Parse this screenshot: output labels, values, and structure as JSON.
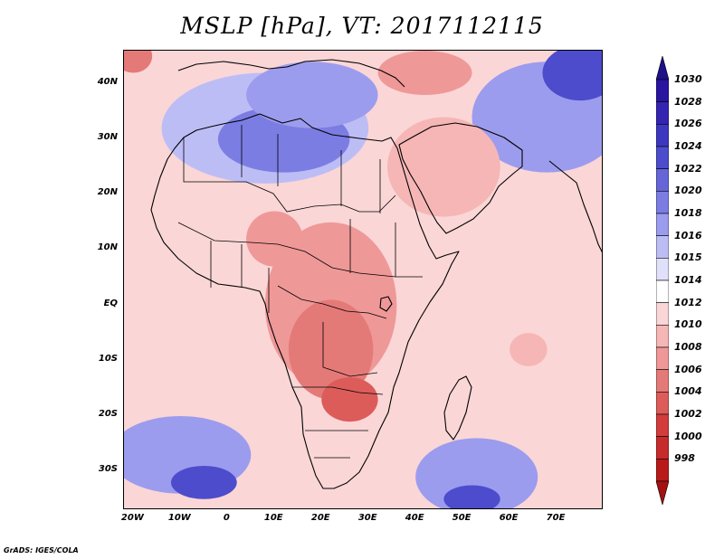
{
  "title": "MSLP [hPa], VT: 2017112115",
  "credit": "GrADS: IGES/COLA",
  "map": {
    "lon_range": [
      -22,
      80
    ],
    "lat_range": [
      -37,
      46
    ],
    "lat_ticks": [
      {
        "value": 40,
        "label": "40N"
      },
      {
        "value": 30,
        "label": "30N"
      },
      {
        "value": 20,
        "label": "20N"
      },
      {
        "value": 10,
        "label": "10N"
      },
      {
        "value": 0,
        "label": "EQ"
      },
      {
        "value": -10,
        "label": "10S"
      },
      {
        "value": -20,
        "label": "20S"
      },
      {
        "value": -30,
        "label": "30S"
      }
    ],
    "lon_ticks": [
      {
        "value": -20,
        "label": "20W"
      },
      {
        "value": -10,
        "label": "10W"
      },
      {
        "value": 0,
        "label": "0"
      },
      {
        "value": 10,
        "label": "10E"
      },
      {
        "value": 20,
        "label": "20E"
      },
      {
        "value": 30,
        "label": "30E"
      },
      {
        "value": 40,
        "label": "40E"
      },
      {
        "value": 50,
        "label": "50E"
      },
      {
        "value": 60,
        "label": "60E"
      },
      {
        "value": 70,
        "label": "70E"
      }
    ]
  },
  "colorbar": {
    "levels": [
      {
        "label": "1030",
        "color": "#2a15a0"
      },
      {
        "label": "1028",
        "color": "#3424b0"
      },
      {
        "label": "1026",
        "color": "#3d37c0"
      },
      {
        "label": "1024",
        "color": "#4d4ccc"
      },
      {
        "label": "1022",
        "color": "#6565d8"
      },
      {
        "label": "1020",
        "color": "#7c7de3"
      },
      {
        "label": "1018",
        "color": "#9c9cee"
      },
      {
        "label": "1016",
        "color": "#bdbdf6"
      },
      {
        "label": "1015",
        "color": "#e0e0fb"
      },
      {
        "label": "1014",
        "color": "#ffffff"
      },
      {
        "label": "1012",
        "color": "#fbd6d6"
      },
      {
        "label": "1010",
        "color": "#f6b6b6"
      },
      {
        "label": "1008",
        "color": "#ef9898"
      },
      {
        "label": "1006",
        "color": "#e47a78"
      },
      {
        "label": "1004",
        "color": "#dc5c5a"
      },
      {
        "label": "1002",
        "color": "#d23c3c"
      },
      {
        "label": "1000",
        "color": "#c72a2a"
      },
      {
        "label": "998",
        "color": "#b81a1a"
      }
    ],
    "top_arrow_color": "#20108a",
    "bottom_arrow_color": "#a51010"
  },
  "fields": {
    "background_color": "#fbd6d6",
    "pressure_regions": [
      {
        "name": "north-africa-high-outer",
        "level": "1016",
        "lon": 8,
        "lat": 32,
        "rx": 22,
        "ry": 10
      },
      {
        "name": "north-africa-high-core",
        "level": "1020",
        "lon": 12,
        "lat": 30,
        "rx": 14,
        "ry": 6
      },
      {
        "name": "mediterranean-high",
        "level": "1018",
        "lon": 18,
        "lat": 38,
        "rx": 14,
        "ry": 6
      },
      {
        "name": "central-asia-high-outer",
        "level": "1018",
        "lon": 68,
        "lat": 34,
        "rx": 16,
        "ry": 10
      },
      {
        "name": "central-asia-high-core",
        "level": "1024",
        "lon": 75,
        "lat": 42,
        "rx": 8,
        "ry": 5
      },
      {
        "name": "african-low-outer",
        "level": "1008",
        "lon": 22,
        "lat": 0,
        "rx": 14,
        "ry": 15
      },
      {
        "name": "african-low-core",
        "level": "1006",
        "lon": 22,
        "lat": -8,
        "rx": 9,
        "ry": 9
      },
      {
        "name": "southern-africa-low",
        "level": "1004",
        "lon": 26,
        "lat": -17,
        "rx": 6,
        "ry": 4
      },
      {
        "name": "sahel-low",
        "level": "1008",
        "lon": 10,
        "lat": 12,
        "rx": 6,
        "ry": 5
      },
      {
        "name": "arabia-low",
        "level": "1010",
        "lon": 46,
        "lat": 25,
        "rx": 12,
        "ry": 9
      },
      {
        "name": "mediterranean-east-low",
        "level": "1008",
        "lon": 42,
        "lat": 42,
        "rx": 10,
        "ry": 4
      },
      {
        "name": "indian-ocean-low",
        "level": "1010",
        "lon": 64,
        "lat": -8,
        "rx": 4,
        "ry": 3
      },
      {
        "name": "sw-atlantic-high-outer",
        "level": "1018",
        "lon": -10,
        "lat": -27,
        "rx": 15,
        "ry": 7
      },
      {
        "name": "sw-atlantic-high-core",
        "level": "1024",
        "lon": -5,
        "lat": -32,
        "rx": 7,
        "ry": 3
      },
      {
        "name": "s-indian-high-outer",
        "level": "1018",
        "lon": 53,
        "lat": -31,
        "rx": 13,
        "ry": 7
      },
      {
        "name": "s-indian-high-core",
        "level": "1024",
        "lon": 52,
        "lat": -35,
        "rx": 6,
        "ry": 2.5
      },
      {
        "name": "nw-atlantic-low",
        "level": "1006",
        "lon": -20,
        "lat": 45,
        "rx": 4,
        "ry": 3
      }
    ]
  }
}
